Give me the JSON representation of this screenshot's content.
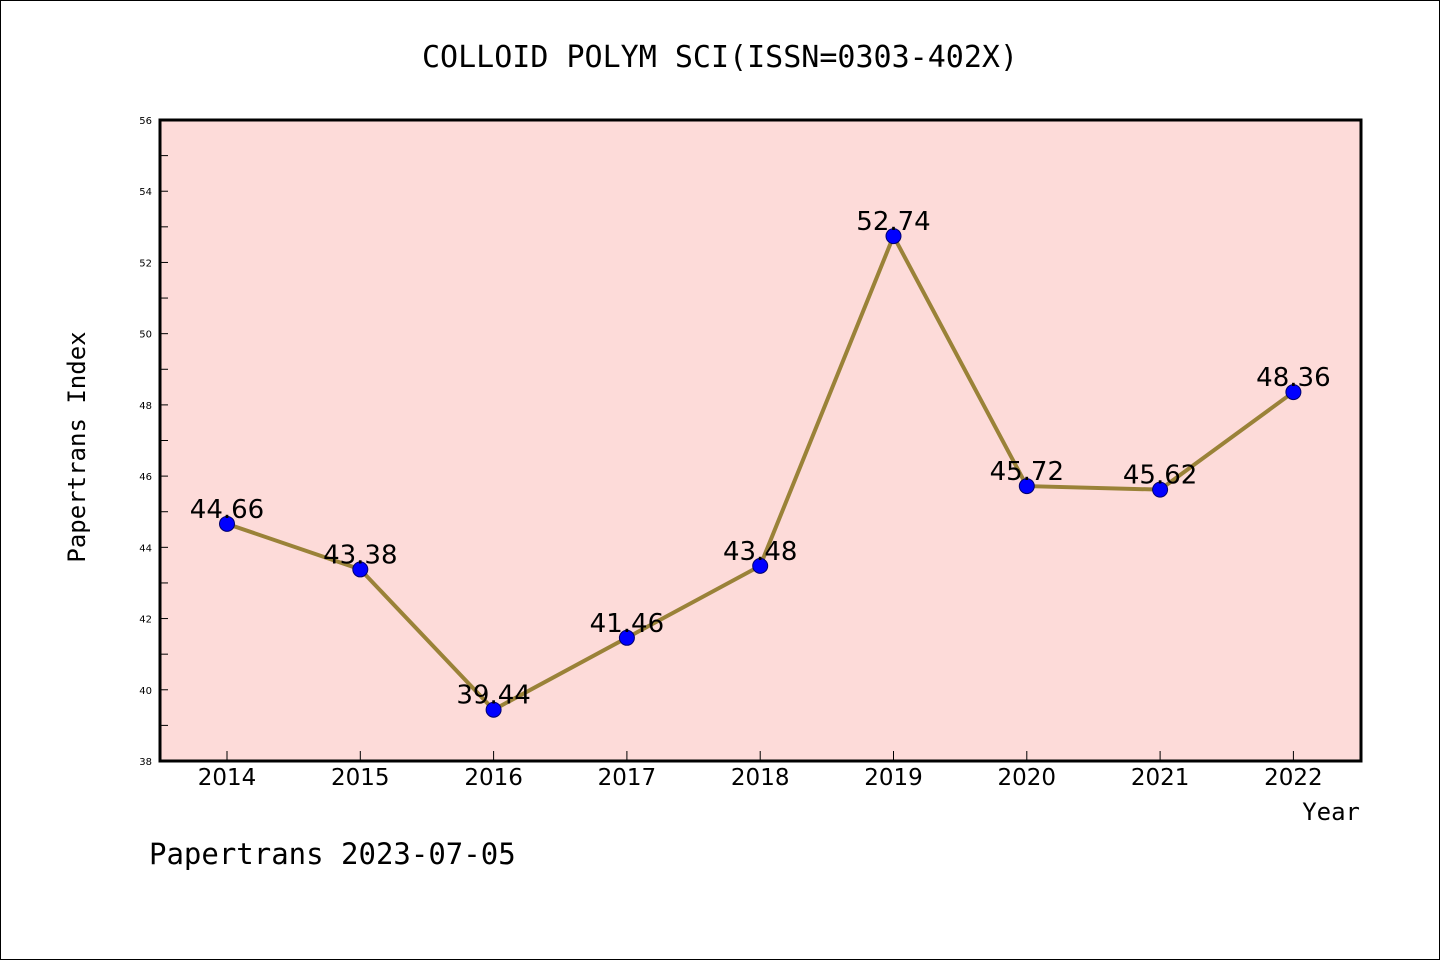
{
  "chart_data": {
    "type": "line",
    "title": "COLLOID POLYM SCI(ISSN=0303-402X)",
    "xlabel": "Year",
    "ylabel": "Papertrans Index",
    "categories": [
      "2014",
      "2015",
      "2016",
      "2017",
      "2018",
      "2019",
      "2020",
      "2021",
      "2022"
    ],
    "values": [
      44.66,
      43.38,
      39.44,
      41.46,
      43.48,
      52.74,
      45.72,
      45.62,
      48.36
    ],
    "data_labels": [
      "44.66",
      "43.38",
      "39.44",
      "41.46",
      "43.48",
      "52.74",
      "45.72",
      "45.62",
      "48.36"
    ],
    "ylim": [
      38,
      56
    ],
    "yticks": [
      "38",
      "40",
      "42",
      "44",
      "46",
      "48",
      "50",
      "52",
      "54",
      "56"
    ],
    "grid": false,
    "legend": "none",
    "footer": "Papertrans 2023-07-05",
    "colors": {
      "plot_background": "#fddbd9",
      "line": "#9a8238",
      "marker": "#0000ff",
      "axis": "#000000"
    }
  }
}
